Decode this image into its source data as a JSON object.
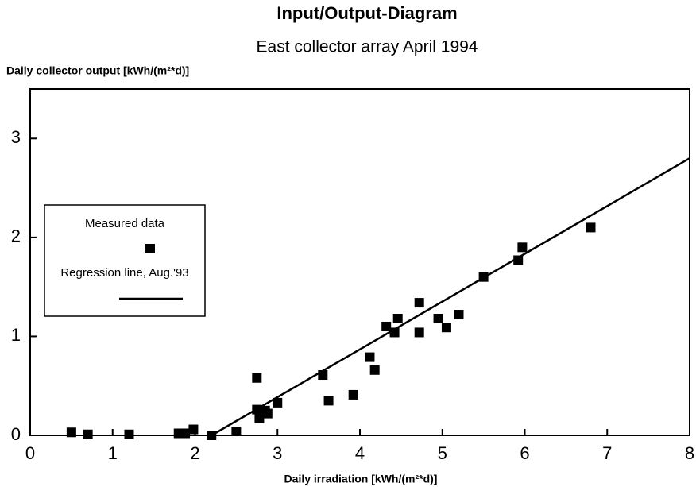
{
  "chart_data": {
    "type": "scatter",
    "title": "Input/Output-Diagram",
    "subtitle": "East collector array April 1994",
    "y_label": "Daily collector output  [kWh/(m²*d)]",
    "x_label": "Daily irradiation  [kWh/(m²*d)]",
    "xlim": [
      0,
      8
    ],
    "ylim": [
      0,
      3.5
    ],
    "xticks": [
      0,
      1,
      2,
      3,
      4,
      5,
      6,
      7,
      8
    ],
    "yticks": [
      0,
      1,
      2,
      3
    ],
    "grid": false,
    "legend": "center left",
    "series": [
      {
        "name": "Measured data",
        "type": "scatter",
        "color": "#000000",
        "x": [
          0.5,
          0.7,
          1.2,
          1.8,
          1.88,
          1.98,
          2.2,
          2.5,
          2.75,
          2.75,
          2.78,
          2.85,
          2.88,
          3.0,
          3.55,
          3.62,
          3.92,
          4.12,
          4.18,
          4.32,
          4.42,
          4.46,
          4.72,
          4.72,
          4.95,
          5.05,
          5.2,
          5.5,
          5.92,
          5.97,
          6.8
        ],
        "values": [
          0.03,
          0.01,
          0.01,
          0.02,
          0.02,
          0.06,
          0.0,
          0.04,
          0.58,
          0.26,
          0.17,
          0.25,
          0.22,
          0.33,
          0.61,
          0.35,
          0.41,
          0.79,
          0.66,
          1.1,
          1.04,
          1.18,
          1.34,
          1.04,
          1.18,
          1.09,
          1.22,
          1.6,
          1.77,
          1.9,
          2.1
        ]
      },
      {
        "name": "Regression line, Aug.'93",
        "type": "line",
        "color": "#000000",
        "x": [
          2.2,
          8
        ],
        "values": [
          0,
          2.8
        ]
      }
    ]
  }
}
